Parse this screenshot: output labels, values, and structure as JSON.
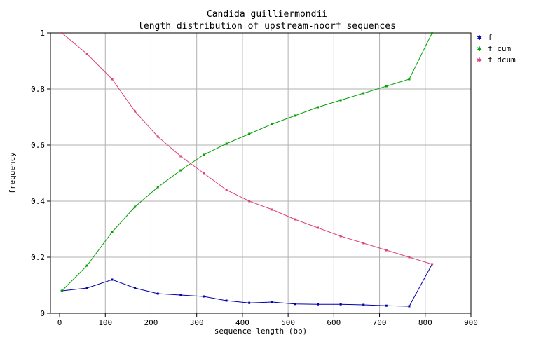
{
  "chart_data": {
    "type": "line",
    "title": "Candida guilliermondii",
    "subtitle": "length distribution of upstream-noorf sequences",
    "xlabel": "sequence length (bp)",
    "ylabel": "frequency",
    "xlim": [
      -20,
      900
    ],
    "ylim": [
      0,
      1
    ],
    "xticks": [
      "0",
      "100",
      "200",
      "300",
      "400",
      "500",
      "600",
      "700",
      "800",
      "900"
    ],
    "yticks": [
      "0",
      "0.2",
      "0.4",
      "0.6",
      "0.8",
      "1"
    ],
    "grid": true,
    "legend_position": "top-right",
    "x": [
      5,
      60,
      115,
      165,
      215,
      265,
      315,
      365,
      415,
      465,
      515,
      565,
      615,
      665,
      715,
      765,
      815
    ],
    "series": [
      {
        "name": "f",
        "color": "#0000b0",
        "values": [
          0.08,
          0.09,
          0.12,
          0.09,
          0.07,
          0.065,
          0.06,
          0.045,
          0.037,
          0.04,
          0.033,
          0.032,
          0.032,
          0.03,
          0.027,
          0.025,
          0.175
        ]
      },
      {
        "name": "f_cum",
        "color": "#00a000",
        "values": [
          0.08,
          0.17,
          0.29,
          0.38,
          0.45,
          0.51,
          0.565,
          0.605,
          0.64,
          0.675,
          0.705,
          0.735,
          0.76,
          0.785,
          0.81,
          0.835,
          1.0
        ]
      },
      {
        "name": "f_dcum",
        "color": "#e0407f",
        "values": [
          1.0,
          0.925,
          0.835,
          0.72,
          0.63,
          0.56,
          0.5,
          0.44,
          0.4,
          0.37,
          0.335,
          0.305,
          0.275,
          0.25,
          0.225,
          0.2,
          0.175
        ]
      }
    ]
  }
}
